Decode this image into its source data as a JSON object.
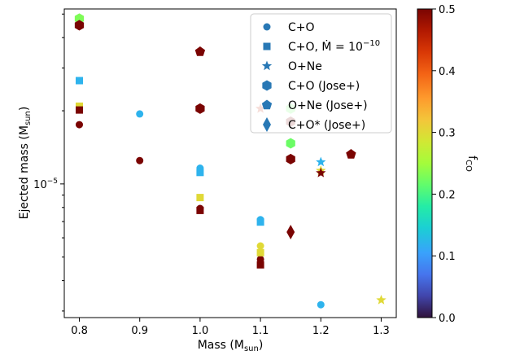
{
  "chart_data": {
    "type": "scatter",
    "title": "",
    "xlabel": "Mass (M",
    "xlabel_sub": "sun",
    "xlabel_close": ")",
    "ylabel": "Ejected mass (M",
    "ylabel_sub": "sun",
    "ylabel_close": ")",
    "x_range": [
      0.775,
      1.325
    ],
    "y_log": true,
    "y_range_log10": [
      -5.55,
      -4.28
    ],
    "x_ticks": [
      0.8,
      0.9,
      1.0,
      1.1,
      1.2,
      1.3
    ],
    "x_tick_labels": [
      "0.8",
      "0.9",
      "1.0",
      "1.1",
      "1.2",
      "1.3"
    ],
    "y_major_tick": {
      "value_log10": -5,
      "base": "10",
      "exponent": "−5"
    },
    "y_minor_ticks_log10": [
      -5.5229,
      -5.3979,
      -5.301,
      -5.2218,
      -5.1549,
      -5.0969,
      -5.0458,
      -4.699,
      -4.5229,
      -4.3979,
      -4.301
    ],
    "colorbar": {
      "label": "f",
      "label_sub": "CO",
      "range": [
        0.0,
        0.5
      ],
      "ticks": [
        0.0,
        0.1,
        0.2,
        0.3,
        0.4,
        0.5
      ],
      "tick_labels": [
        "0.0",
        "0.1",
        "0.2",
        "0.3",
        "0.4",
        "0.5"
      ],
      "colormap": "turbo"
    },
    "legend": {
      "placement": "top-right",
      "entries": [
        {
          "marker": "circle",
          "label": "C+O"
        },
        {
          "marker": "square",
          "label": "C+O, Ṁ = 10",
          "superscript": "−10"
        },
        {
          "marker": "star",
          "label": "O+Ne"
        },
        {
          "marker": "hexagon",
          "label": "C+O (Jose+)"
        },
        {
          "marker": "pentagon",
          "label": "O+Ne (Jose+)"
        },
        {
          "marker": "diamond",
          "label": "C+O* (Jose+)"
        }
      ],
      "marker_color": "#2878b5"
    },
    "series": [
      {
        "name": "C+O",
        "marker": "circle",
        "points": [
          {
            "x": 0.8,
            "y_log10": -4.756,
            "f": 0.5
          },
          {
            "x": 0.9,
            "y_log10": -4.712,
            "f": 0.12
          },
          {
            "x": 0.9,
            "y_log10": -4.904,
            "f": 0.5
          },
          {
            "x": 1.0,
            "y_log10": -4.935,
            "f": 0.12
          },
          {
            "x": 1.0,
            "y_log10": -5.101,
            "f": 0.5
          },
          {
            "x": 1.1,
            "y_log10": -5.147,
            "f": 0.12
          },
          {
            "x": 1.1,
            "y_log10": -5.255,
            "f": 0.3
          },
          {
            "x": 1.1,
            "y_log10": -5.31,
            "f": 0.5
          },
          {
            "x": 1.2,
            "y_log10": -5.497,
            "f": 0.12
          }
        ]
      },
      {
        "name": "C+O, Mdot = 1e-10",
        "marker": "square",
        "points": [
          {
            "x": 0.8,
            "y_log10": -4.575,
            "f": 0.12
          },
          {
            "x": 0.8,
            "y_log10": -4.68,
            "f": 0.3
          },
          {
            "x": 0.8,
            "y_log10": -4.696,
            "f": 0.5
          },
          {
            "x": 1.0,
            "y_log10": -4.953,
            "f": 0.12
          },
          {
            "x": 1.0,
            "y_log10": -5.056,
            "f": 0.3
          },
          {
            "x": 1.0,
            "y_log10": -5.109,
            "f": 0.5
          },
          {
            "x": 1.1,
            "y_log10": -5.157,
            "f": 0.12
          },
          {
            "x": 1.1,
            "y_log10": -5.283,
            "f": 0.3
          },
          {
            "x": 1.1,
            "y_log10": -5.333,
            "f": 0.5
          }
        ]
      },
      {
        "name": "O+Ne",
        "marker": "star",
        "points": [
          {
            "x": 1.1,
            "y_log10": -4.69,
            "f": 0.45
          },
          {
            "x": 1.2,
            "y_log10": -4.91,
            "f": 0.12
          },
          {
            "x": 1.2,
            "y_log10": -4.945,
            "f": 0.3
          },
          {
            "x": 1.2,
            "y_log10": -4.955,
            "f": 0.5
          },
          {
            "x": 1.3,
            "y_log10": -5.478,
            "f": 0.3
          }
        ]
      },
      {
        "name": "C+O (Jose+)",
        "marker": "hexagon",
        "points": [
          {
            "x": 0.8,
            "y_log10": -4.32,
            "f": 0.23
          },
          {
            "x": 0.8,
            "y_log10": -4.347,
            "f": 0.5
          },
          {
            "x": 1.0,
            "y_log10": -4.69,
            "f": 0.5
          },
          {
            "x": 1.15,
            "y_log10": -4.69,
            "f": 0.22
          },
          {
            "x": 1.15,
            "y_log10": -4.744,
            "f": 0.5
          },
          {
            "x": 1.15,
            "y_log10": -4.833,
            "f": 0.22
          },
          {
            "x": 1.15,
            "y_log10": -4.898,
            "f": 0.5
          }
        ]
      },
      {
        "name": "O+Ne (Jose+)",
        "marker": "pentagon",
        "points": [
          {
            "x": 1.0,
            "y_log10": -4.456,
            "f": 0.5
          },
          {
            "x": 1.25,
            "y_log10": -4.878,
            "f": 0.5
          }
        ]
      },
      {
        "name": "C+O* (Jose+)",
        "marker": "diamond",
        "points": [
          {
            "x": 1.15,
            "y_log10": -5.198,
            "f": 0.5
          }
        ]
      }
    ]
  }
}
